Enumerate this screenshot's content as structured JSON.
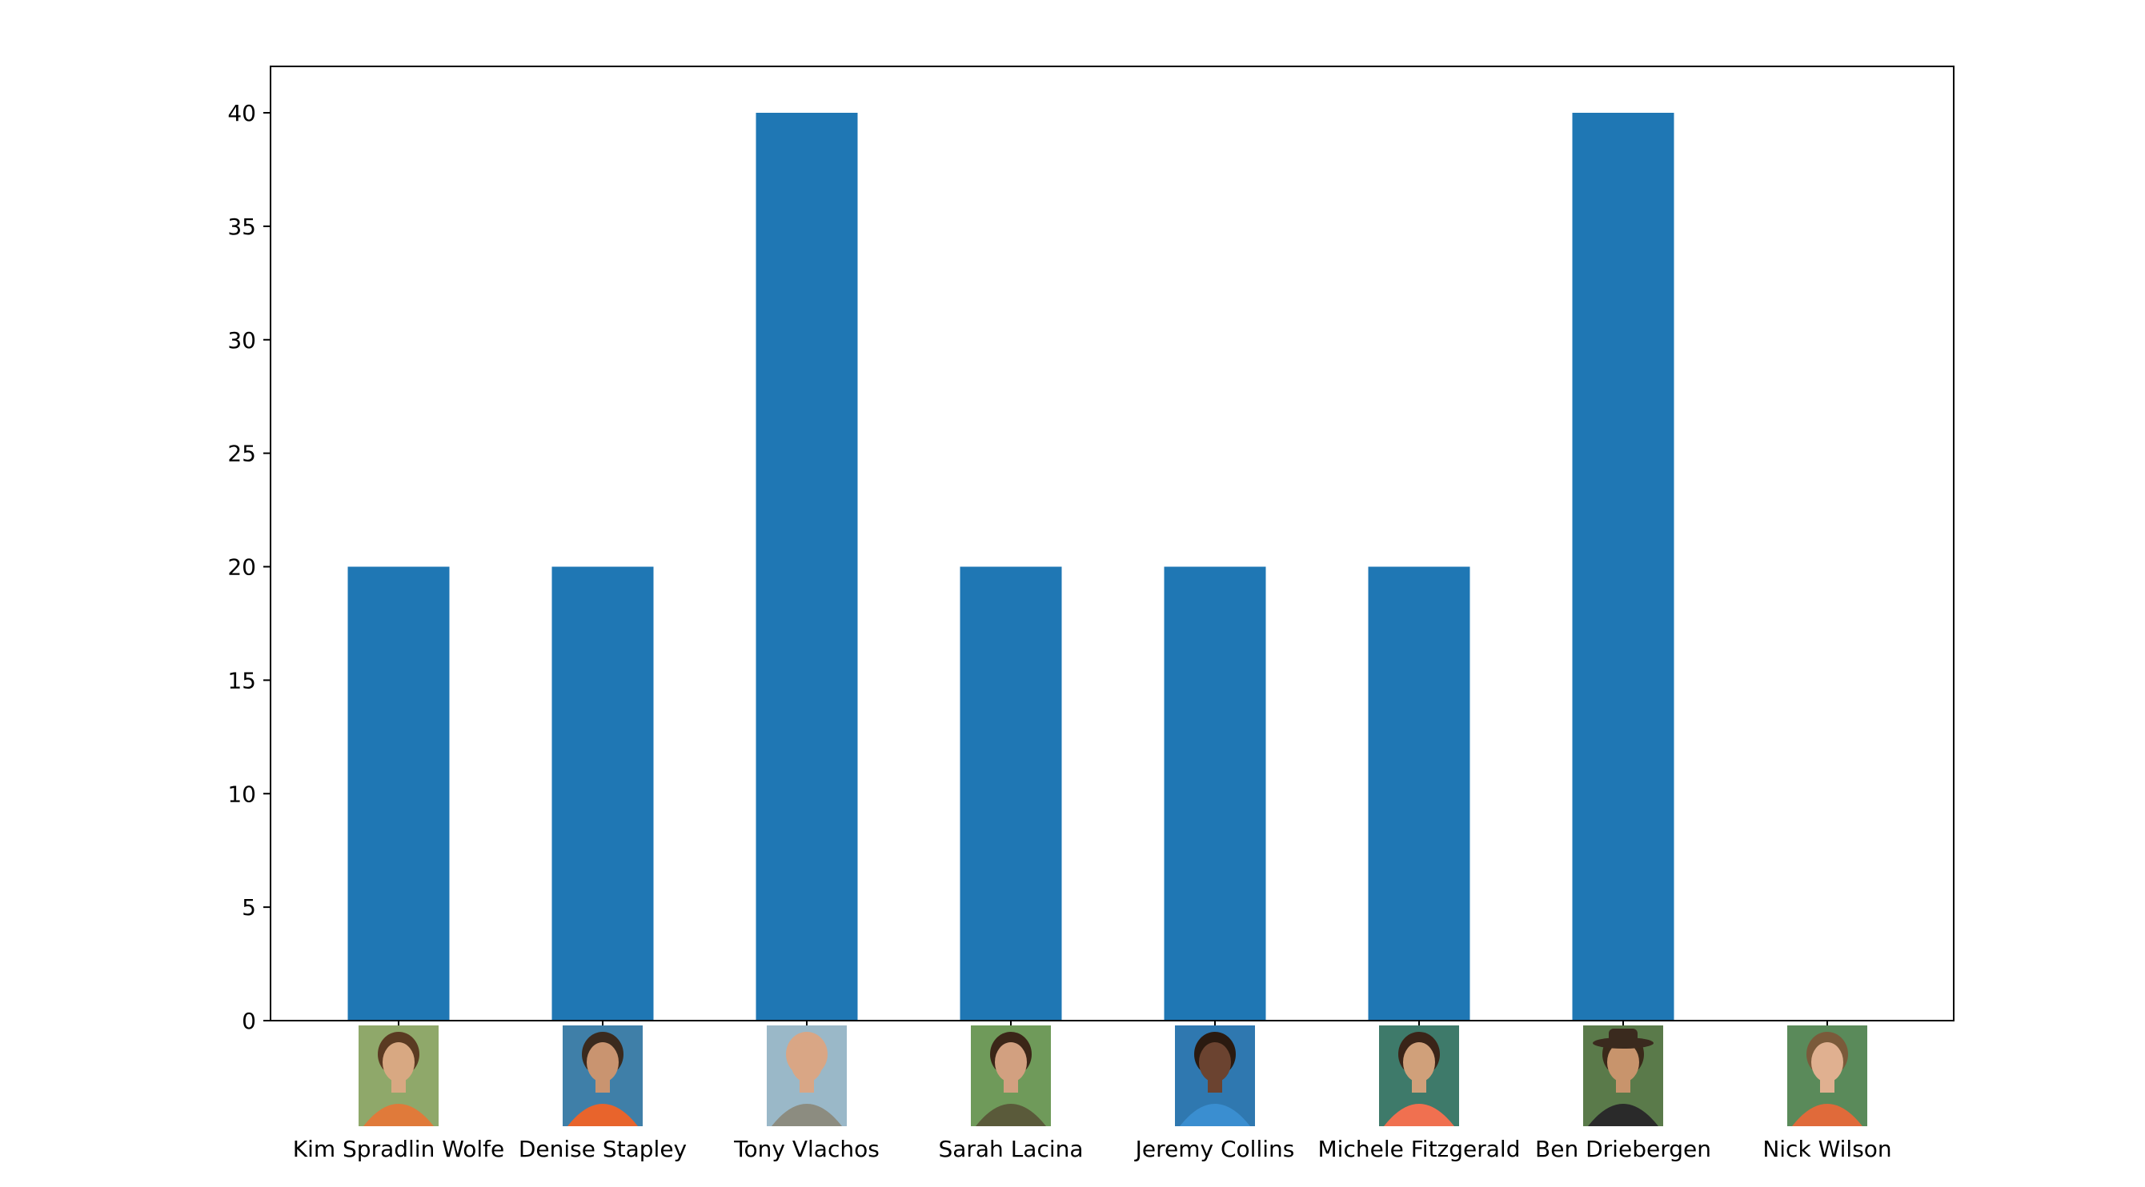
{
  "chart_data": {
    "type": "bar",
    "categories": [
      "Kim Spradlin Wolfe",
      "Denise Stapley",
      "Tony Vlachos",
      "Sarah Lacina",
      "Jeremy Collins",
      "Michele Fitzgerald",
      "Ben Driebergen",
      "Nick Wilson"
    ],
    "values": [
      20,
      20,
      40,
      20,
      20,
      20,
      40,
      0
    ],
    "ylim": [
      0,
      42
    ],
    "yticks": [
      "0",
      "5",
      "10",
      "15",
      "20",
      "25",
      "30",
      "35",
      "40"
    ],
    "title": "",
    "xlabel": "",
    "ylabel": "",
    "bar_color": "#1f77b4",
    "grid": false,
    "legend": "none",
    "tick_images": "contestant-portrait"
  }
}
